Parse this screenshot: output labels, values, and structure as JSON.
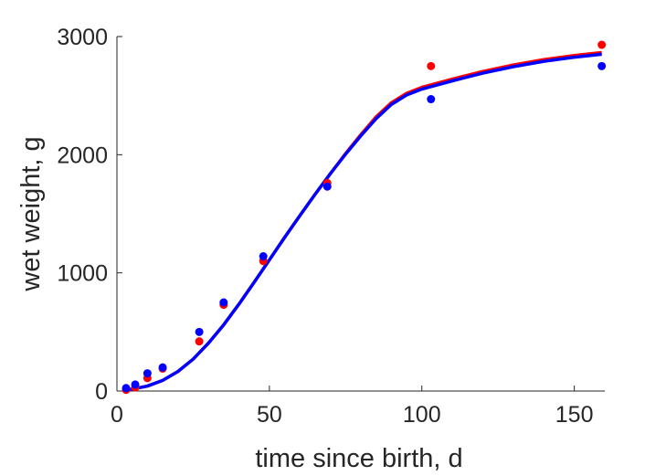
{
  "chart_data": {
    "type": "scatter",
    "xlabel": "time since birth, d",
    "ylabel": "wet weight, g",
    "xlim": [
      0,
      160
    ],
    "ylim": [
      0,
      3000
    ],
    "xticks": [
      0,
      50,
      100,
      150
    ],
    "yticks": [
      0,
      1000,
      2000,
      3000
    ],
    "grid": false,
    "legend": "none",
    "series": [
      {
        "kind": "points",
        "color": "#ff0000",
        "x": [
          3,
          6,
          10,
          15,
          27,
          35,
          48,
          69,
          103,
          159
        ],
        "y": [
          10,
          30,
          110,
          190,
          420,
          730,
          1100,
          1760,
          2750,
          2930
        ]
      },
      {
        "kind": "points",
        "color": "#0000ff",
        "x": [
          3,
          6,
          10,
          15,
          27,
          35,
          48,
          69,
          103,
          159
        ],
        "y": [
          25,
          55,
          150,
          200,
          500,
          750,
          1140,
          1730,
          2470,
          2750
        ]
      },
      {
        "kind": "line",
        "color": "#ff0000",
        "x": [
          3,
          5,
          10,
          15,
          20,
          25,
          30,
          35,
          40,
          45,
          50,
          55,
          60,
          65,
          70,
          75,
          80,
          85,
          90,
          95,
          100,
          105,
          110,
          120,
          130,
          140,
          150,
          159
        ],
        "y": [
          10,
          16,
          42,
          90,
          165,
          270,
          405,
          560,
          735,
          920,
          1110,
          1300,
          1485,
          1665,
          1840,
          2010,
          2170,
          2320,
          2440,
          2520,
          2570,
          2605,
          2640,
          2705,
          2760,
          2805,
          2840,
          2865
        ]
      },
      {
        "kind": "line",
        "color": "#0000ff",
        "x": [
          3,
          5,
          10,
          15,
          20,
          25,
          30,
          35,
          40,
          45,
          50,
          55,
          60,
          65,
          70,
          75,
          80,
          85,
          90,
          95,
          100,
          105,
          110,
          120,
          130,
          140,
          150,
          159
        ],
        "y": [
          10,
          16,
          42,
          90,
          165,
          270,
          405,
          560,
          735,
          920,
          1110,
          1300,
          1485,
          1665,
          1840,
          2005,
          2160,
          2305,
          2425,
          2505,
          2555,
          2590,
          2625,
          2690,
          2745,
          2790,
          2825,
          2850
        ]
      }
    ]
  }
}
